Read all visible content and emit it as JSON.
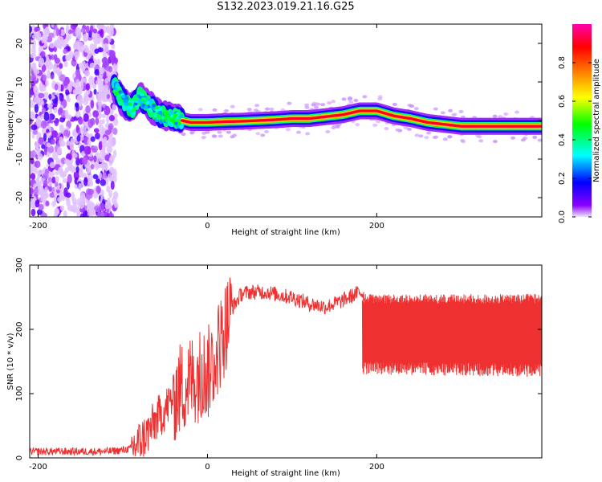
{
  "title": "S132.2023.019.21.16.G25",
  "chart_data": [
    {
      "type": "heatmap",
      "xlabel": "Height of straight line (km)",
      "ylabel": "Frequency (Hz)",
      "xlim": [
        -210,
        395
      ],
      "ylim": [
        -25,
        25
      ],
      "xticks": [
        -200,
        0,
        200
      ],
      "yticks": [
        -20,
        -10,
        0,
        10,
        20
      ],
      "colorbar": {
        "label": "Normalized spectral amplitude",
        "ticks": [
          0.0,
          0.2,
          0.4,
          0.6,
          0.8
        ],
        "range": [
          0,
          1
        ],
        "colors": [
          "#f0e6ff",
          "#8a00ff",
          "#0000ff",
          "#00ffff",
          "#00ff00",
          "#ffff00",
          "#ff7f00",
          "#ff0000",
          "#ff00aa"
        ]
      },
      "dominant_frequency_trace": {
        "x": [
          -110,
          -100,
          -90,
          -80,
          -70,
          -60,
          -50,
          -40,
          -30,
          -20,
          -10,
          0,
          20,
          40,
          60,
          80,
          100,
          120,
          140,
          160,
          180,
          200,
          220,
          240,
          260,
          280,
          300,
          320,
          340,
          360,
          380,
          395
        ],
        "y": [
          9,
          5,
          3,
          6,
          4,
          2,
          1,
          0.5,
          0,
          -0.5,
          -0.5,
          -0.5,
          -0.3,
          -0.2,
          0,
          0.2,
          0.5,
          0.5,
          1,
          1.5,
          2.5,
          2.5,
          1.2,
          0.5,
          -0.5,
          -1,
          -1.5,
          -1.5,
          -1.5,
          -1.5,
          -1.5,
          -1.5
        ]
      },
      "noise_region_x": [
        -210,
        -108
      ]
    },
    {
      "type": "line",
      "xlabel": "Height of straight line (km)",
      "ylabel": "SNR (10 * v/v)",
      "xlim": [
        -210,
        395
      ],
      "ylim": [
        0,
        300
      ],
      "xticks": [
        -200,
        0,
        200
      ],
      "yticks": [
        0,
        100,
        200,
        300
      ],
      "color": "#ef3030",
      "series": [
        {
          "x": [
            -210,
            -180,
            -150,
            -120,
            -100,
            -90,
            -80,
            -70,
            -60,
            -50,
            -40,
            -30,
            -20,
            -10,
            0,
            10,
            20,
            30,
            40,
            50,
            60,
            70,
            80,
            90,
            100,
            120,
            140,
            160,
            180,
            185
          ],
          "y": [
            10,
            10,
            10,
            10,
            12,
            15,
            25,
            40,
            60,
            75,
            95,
            110,
            120,
            130,
            130,
            160,
            200,
            235,
            255,
            258,
            258,
            258,
            255,
            252,
            250,
            240,
            235,
            245,
            258,
            255
          ]
        }
      ],
      "band_region": {
        "x_start": 183,
        "x_end": 395,
        "low": 140,
        "high": 255
      }
    }
  ]
}
